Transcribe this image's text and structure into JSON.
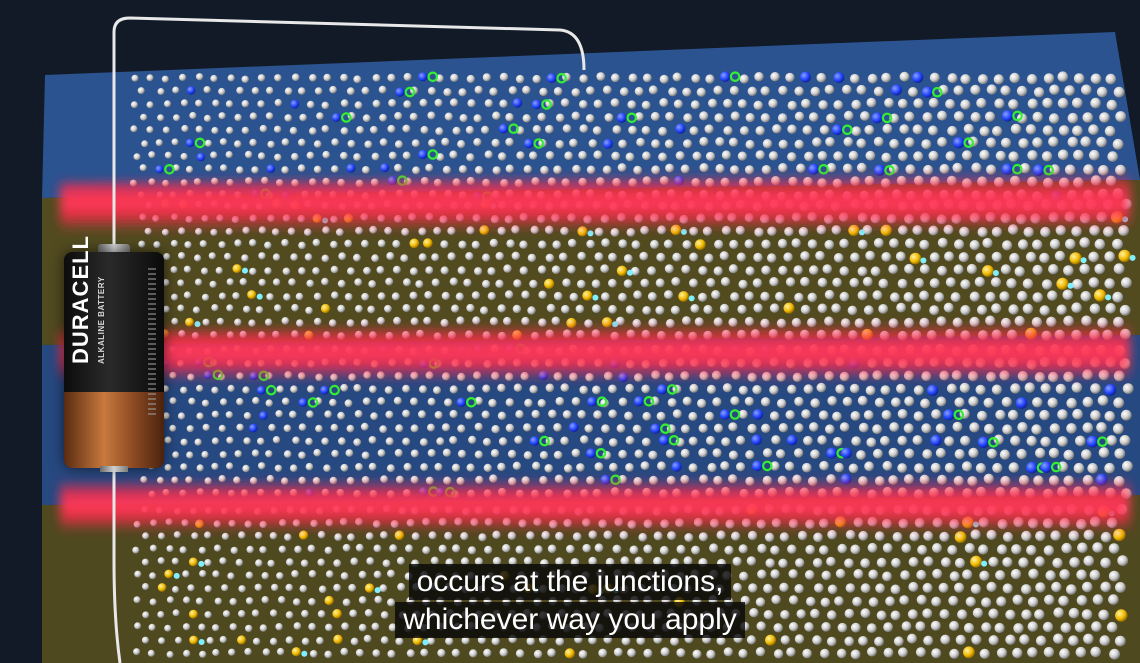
{
  "battery": {
    "brand": "DURACELL",
    "subtitle": "ALKALINE BATTERY"
  },
  "captions": {
    "line1": "occurs at the junctions,",
    "line2": "whichever way you apply"
  },
  "colors": {
    "background": "#111a26",
    "n_region": "#2f5a9c",
    "p_region": "#5e5520",
    "junction_glow": "#ff2a4a",
    "donor_atom": "#2244ff",
    "electron_ring": "#33ee33",
    "acceptor_atom": "#f0b800",
    "hole": "#7ff0ff",
    "silicon_atom": "#d9d9d9"
  }
}
